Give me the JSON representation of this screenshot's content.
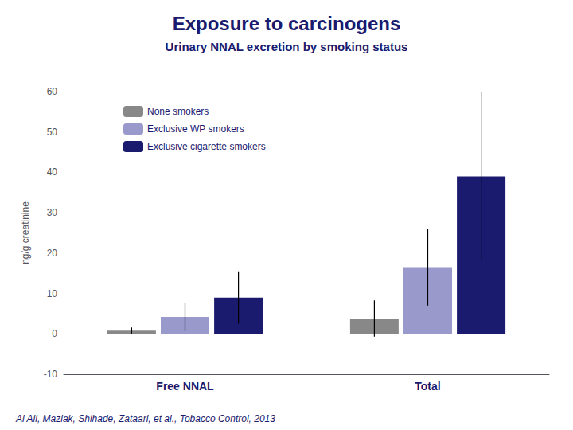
{
  "chart_data": {
    "type": "bar",
    "title": "Exposure to carcinogens",
    "subtitle": "Urinary NNAL excretion by smoking status",
    "ylabel": "ng/g creatinine",
    "categories": [
      "Free NNAL",
      "Total"
    ],
    "series": [
      {
        "name": "None smokers",
        "color": "#888888",
        "values": [
          0.8,
          3.8
        ],
        "errors": [
          0.8,
          4.5
        ]
      },
      {
        "name": "Exclusive WP smokers",
        "color": "#9999cc",
        "values": [
          4.2,
          16.5
        ],
        "errors": [
          3.5,
          9.5
        ]
      },
      {
        "name": "Exclusive cigarette smokers",
        "color": "#1a1a6e",
        "values": [
          9.0,
          39.0
        ],
        "errors": [
          6.5,
          21.0
        ]
      }
    ],
    "ylim": [
      -10,
      60
    ],
    "yticks": [
      -10,
      0,
      10,
      20,
      30,
      40,
      50,
      60
    ],
    "grid": false,
    "legend": "upper left",
    "annotations": [
      "Al Ali, Maziak, Shihade, Zataari, et al., Tobacco Control, 2013"
    ]
  }
}
